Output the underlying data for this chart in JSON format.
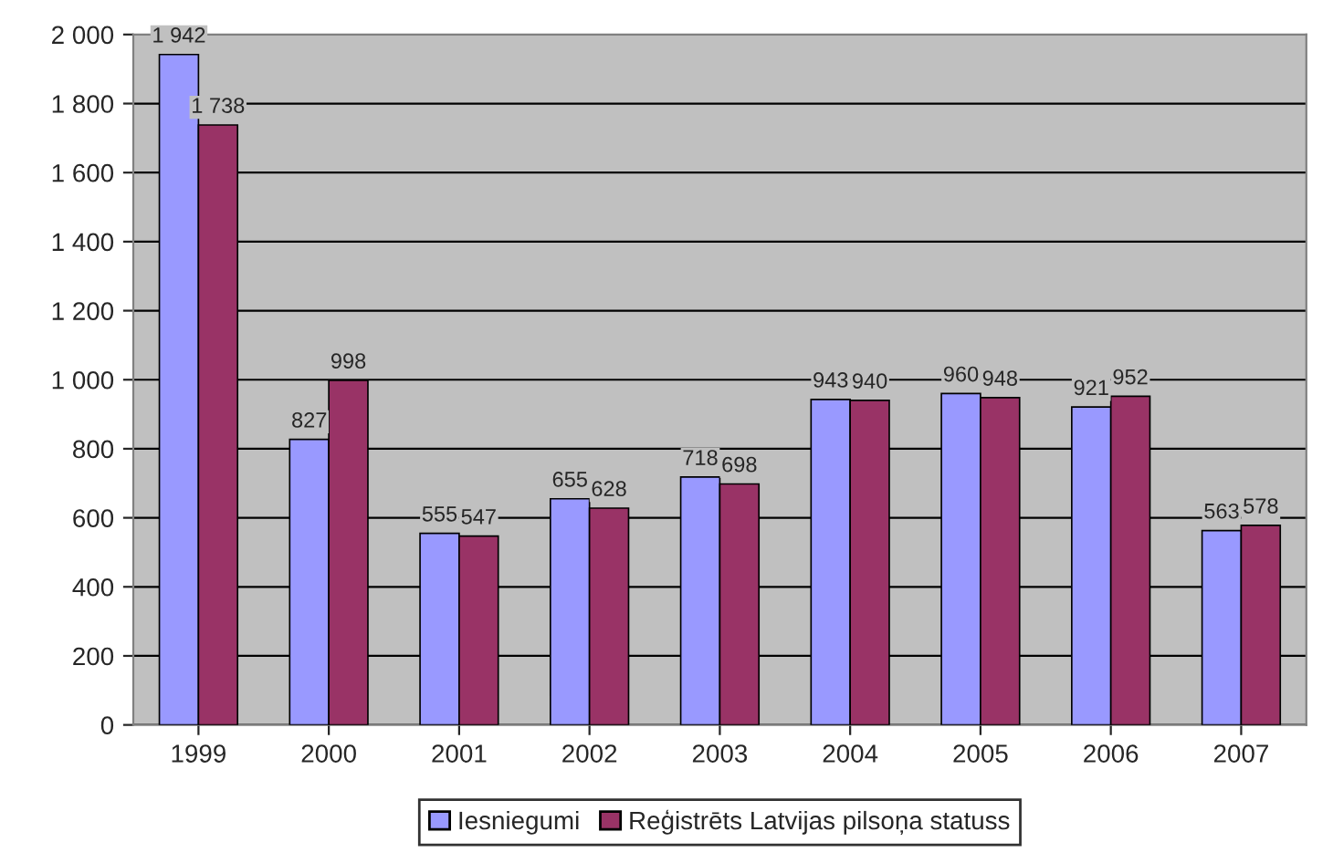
{
  "chart_data": {
    "type": "bar",
    "categories": [
      "1999",
      "2000",
      "2001",
      "2002",
      "2003",
      "2004",
      "2005",
      "2006",
      "2007"
    ],
    "series": [
      {
        "name": "Iesniegumi",
        "color": "#9999ff",
        "values": [
          1942,
          827,
          555,
          655,
          718,
          943,
          960,
          921,
          563
        ],
        "value_labels": [
          "1 942",
          "827",
          "555",
          "655",
          "718",
          "943",
          "960",
          "921",
          "563"
        ]
      },
      {
        "name": "Reģistrēts Latvijas pilsoņa statuss",
        "color": "#993366",
        "values": [
          1738,
          998,
          547,
          628,
          698,
          940,
          948,
          952,
          578
        ],
        "value_labels": [
          "1 738",
          "998",
          "547",
          "628",
          "698",
          "940",
          "948",
          "952",
          "578"
        ]
      }
    ],
    "ylim": [
      0,
      2000
    ],
    "yticks": [
      0,
      200,
      400,
      600,
      800,
      {
        "value": 1000,
        "label": "1 000"
      },
      {
        "value": 1200,
        "label": "1 200"
      },
      {
        "value": 1400,
        "label": "1 400"
      },
      {
        "value": 1600,
        "label": "1 600"
      },
      {
        "value": 1800,
        "label": "1 800"
      },
      {
        "value": 2000,
        "label": "2 000"
      }
    ],
    "grid": "y",
    "legend": "bottom"
  }
}
